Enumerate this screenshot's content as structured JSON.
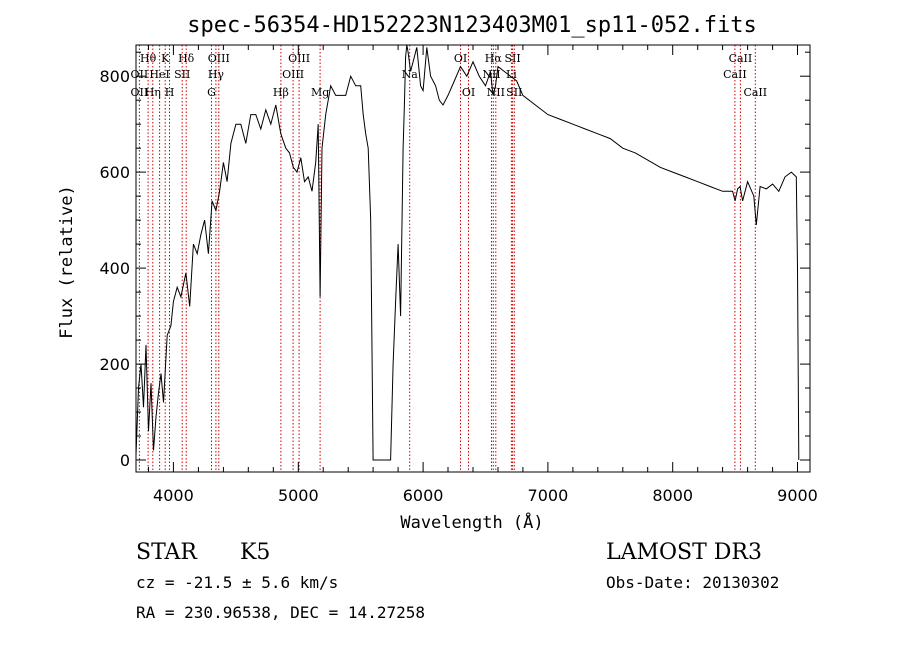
{
  "chart_data": {
    "type": "line",
    "title": "spec-56354-HD152223N123403M01_sp11-052.fits",
    "xlabel": "Wavelength (Å)",
    "ylabel": "Flux (relative)",
    "xlim": [
      3700,
      9100
    ],
    "ylim": [
      -25,
      865
    ],
    "x_ticks": [
      4000,
      5000,
      6000,
      7000,
      8000,
      9000
    ],
    "x_tick_labels": [
      "4000",
      "5000",
      "6000",
      "7000",
      "8000",
      "9000"
    ],
    "y_ticks": [
      0,
      200,
      400,
      600,
      800
    ],
    "y_tick_labels": [
      "0",
      "200",
      "400",
      "600",
      "800"
    ],
    "grid": false,
    "series": [
      {
        "color": "#000000",
        "x": [
          3700,
          3720,
          3740,
          3760,
          3780,
          3800,
          3820,
          3840,
          3860,
          3880,
          3900,
          3920,
          3950,
          3980,
          4000,
          4030,
          4060,
          4100,
          4130,
          4160,
          4190,
          4220,
          4250,
          4280,
          4310,
          4340,
          4370,
          4400,
          4430,
          4460,
          4500,
          4540,
          4580,
          4620,
          4660,
          4700,
          4740,
          4780,
          4820,
          4860,
          4900,
          4930,
          4960,
          4990,
          5020,
          5050,
          5080,
          5110,
          5140,
          5160,
          5175,
          5190,
          5220,
          5260,
          5300,
          5340,
          5380,
          5420,
          5460,
          5500,
          5520,
          5540,
          5560,
          5580,
          5600,
          5620,
          5660,
          5700,
          5720,
          5740,
          5760,
          5780,
          5800,
          5820,
          5840,
          5850,
          5860,
          5870,
          5880,
          5900,
          5920,
          5950,
          5980,
          6000,
          6030,
          6060,
          6100,
          6130,
          6160,
          6200,
          6250,
          6300,
          6350,
          6400,
          6450,
          6500,
          6540,
          6560,
          6580,
          6600,
          6650,
          6700,
          6750,
          6800,
          6900,
          7000,
          7100,
          7200,
          7300,
          7400,
          7500,
          7600,
          7700,
          7800,
          7900,
          8000,
          8100,
          8200,
          8300,
          8400,
          8480,
          8500,
          8520,
          8540,
          8560,
          8600,
          8650,
          8670,
          8700,
          8750,
          8800,
          8850,
          8900,
          8950,
          8990,
          9000,
          9010
        ],
        "y": [
          10,
          150,
          200,
          110,
          240,
          60,
          160,
          20,
          90,
          140,
          180,
          120,
          260,
          280,
          330,
          360,
          340,
          390,
          320,
          450,
          430,
          470,
          500,
          430,
          540,
          520,
          560,
          620,
          580,
          660,
          700,
          700,
          660,
          720,
          720,
          690,
          730,
          700,
          740,
          680,
          650,
          640,
          610,
          600,
          630,
          580,
          590,
          560,
          620,
          700,
          340,
          650,
          720,
          780,
          760,
          760,
          760,
          800,
          780,
          780,
          720,
          680,
          650,
          500,
          0,
          0,
          0,
          0,
          0,
          0,
          200,
          330,
          450,
          300,
          650,
          740,
          840,
          880,
          850,
          810,
          830,
          860,
          780,
          770,
          860,
          800,
          780,
          750,
          740,
          760,
          790,
          820,
          800,
          830,
          800,
          780,
          810,
          760,
          780,
          820,
          810,
          800,
          790,
          760,
          740,
          720,
          710,
          700,
          690,
          680,
          670,
          650,
          640,
          625,
          610,
          600,
          590,
          580,
          570,
          560,
          560,
          540,
          565,
          570,
          540,
          580,
          550,
          490,
          570,
          565,
          575,
          560,
          590,
          600,
          590,
          400,
          0
        ]
      }
    ],
    "annotations": [
      {
        "label": "Hθ",
        "x": 3797,
        "row": 1
      },
      {
        "label": "K",
        "x": 3934,
        "row": 1
      },
      {
        "label": "Hδ",
        "x": 4102,
        "row": 1
      },
      {
        "label": "OIII",
        "x": 4363,
        "row": 1
      },
      {
        "label": "OIII",
        "x": 5007,
        "row": 1
      },
      {
        "label": "OI",
        "x": 6300,
        "row": 1
      },
      {
        "label": "Hα",
        "x": 6563,
        "row": 1
      },
      {
        "label": "SII",
        "x": 6717,
        "row": 1
      },
      {
        "label": "CaII",
        "x": 8542,
        "row": 1
      },
      {
        "label": "OII",
        "x": 3727,
        "row": 2
      },
      {
        "label": "HeI",
        "x": 3889,
        "row": 2
      },
      {
        "label": "SII",
        "x": 4070,
        "row": 2
      },
      {
        "label": "Hγ",
        "x": 4340,
        "row": 2
      },
      {
        "label": "OIII",
        "x": 4959,
        "row": 2
      },
      {
        "label": "Na",
        "x": 5893,
        "row": 2
      },
      {
        "label": "NII",
        "x": 6548,
        "row": 2
      },
      {
        "label": "Li",
        "x": 6708,
        "row": 2
      },
      {
        "label": "CaII",
        "x": 8498,
        "row": 2
      },
      {
        "label": "OII",
        "x": 3727,
        "row": 3
      },
      {
        "label": "Hη",
        "x": 3835,
        "row": 3
      },
      {
        "label": "H",
        "x": 3968,
        "row": 3
      },
      {
        "label": "G",
        "x": 4305,
        "row": 3
      },
      {
        "label": "Hβ",
        "x": 4861,
        "row": 3
      },
      {
        "label": "Mg",
        "x": 5175,
        "row": 3
      },
      {
        "label": "OI",
        "x": 6364,
        "row": 3
      },
      {
        "label": "NII",
        "x": 6583,
        "row": 3
      },
      {
        "label": "SII",
        "x": 6731,
        "row": 3
      },
      {
        "label": "CaII",
        "x": 8662,
        "row": 3
      }
    ],
    "line_marker_x": [
      3727,
      3797,
      3835,
      3889,
      3934,
      3968,
      4070,
      4102,
      4305,
      4340,
      4363,
      4861,
      4959,
      5007,
      5175,
      5893,
      6300,
      6364,
      6548,
      6563,
      6583,
      6708,
      6717,
      6731,
      8498,
      8542,
      8662
    ],
    "line_marker_color": "#cc0000"
  },
  "info": {
    "object_class": "STAR",
    "subclass": "K5",
    "cz": "cz = -21.5 ± 5.6 km/s",
    "radec": "RA = 230.96538, DEC =  14.27258",
    "survey": "LAMOST DR3",
    "obs_date": "Obs-Date: 20130302"
  }
}
